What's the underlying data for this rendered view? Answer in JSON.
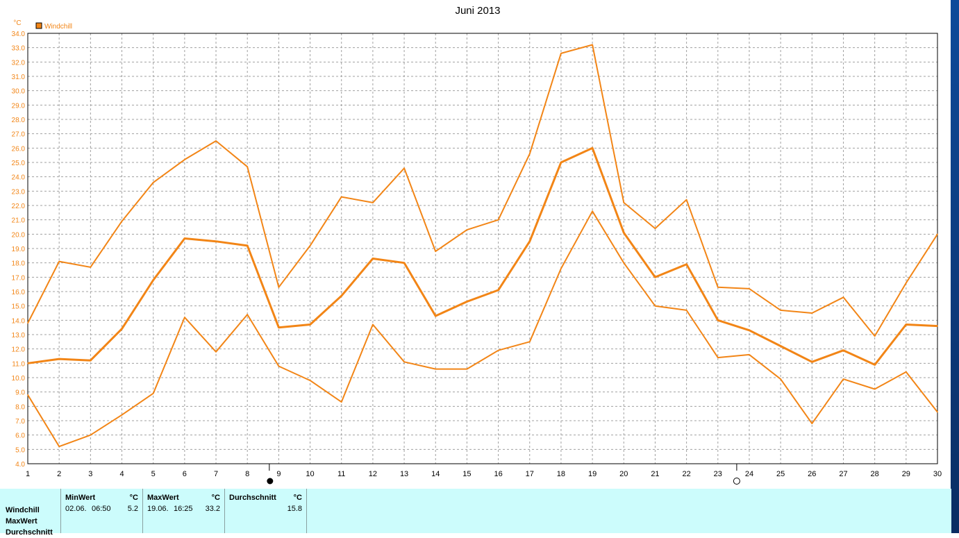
{
  "chart_data": {
    "type": "line",
    "title": "Juni 2013",
    "ylabel": "°C",
    "xlabel": "",
    "ylim": [
      4.0,
      34.0
    ],
    "ytick_step": 1.0,
    "x": [
      1,
      2,
      3,
      4,
      5,
      6,
      7,
      8,
      9,
      10,
      11,
      12,
      13,
      14,
      15,
      16,
      17,
      18,
      19,
      20,
      21,
      22,
      23,
      24,
      25,
      26,
      27,
      28,
      29,
      30
    ],
    "legend": "Windchill",
    "grid": true,
    "series": [
      {
        "role": "max",
        "values": [
          13.8,
          18.1,
          17.7,
          20.9,
          23.6,
          25.2,
          26.5,
          24.7,
          16.3,
          19.2,
          22.6,
          22.2,
          24.6,
          18.8,
          20.3,
          21.0,
          25.6,
          32.6,
          33.2,
          22.2,
          20.4,
          22.4,
          16.3,
          16.2,
          14.7,
          14.5,
          15.6,
          12.9,
          16.6,
          20.0
        ]
      },
      {
        "role": "avg",
        "values": [
          11.0,
          11.3,
          11.2,
          13.4,
          16.8,
          19.7,
          19.5,
          19.2,
          13.5,
          13.7,
          15.7,
          18.3,
          18.0,
          14.3,
          15.3,
          16.1,
          19.5,
          25.0,
          26.0,
          20.1,
          17.0,
          17.9,
          14.0,
          13.3,
          12.2,
          11.1,
          11.9,
          10.9,
          13.7,
          13.6
        ]
      },
      {
        "role": "min",
        "values": [
          8.8,
          5.2,
          6.0,
          7.4,
          8.9,
          14.2,
          11.8,
          14.4,
          10.8,
          9.8,
          8.3,
          13.7,
          11.1,
          10.6,
          10.6,
          11.9,
          12.5,
          17.6,
          21.6,
          18.0,
          15.0,
          14.7,
          11.4,
          11.6,
          9.9,
          6.8,
          9.9,
          9.2,
          10.4,
          7.6
        ]
      }
    ],
    "moon_phases": [
      {
        "x": 8.7,
        "phase": "new-moon"
      },
      {
        "x": 23.6,
        "phase": "full-moon"
      }
    ]
  },
  "colors": {
    "line": "#f28516",
    "axis_text": "#f28516",
    "grid": "#a0a0a0",
    "panel": "#ccfcfc"
  },
  "stats": {
    "row_labels": [
      "Windchill",
      "MaxWert",
      "Durchschnitt"
    ],
    "min": {
      "header": "MinWert",
      "unit": "°C",
      "date": "02.06.",
      "time": "06:50",
      "value": "5.2"
    },
    "max": {
      "header": "MaxWert",
      "unit": "°C",
      "date": "19.06.",
      "time": "16:25",
      "value": "33.2"
    },
    "avg": {
      "header": "Durchschnitt",
      "unit": "°C",
      "value": "15.8"
    }
  }
}
